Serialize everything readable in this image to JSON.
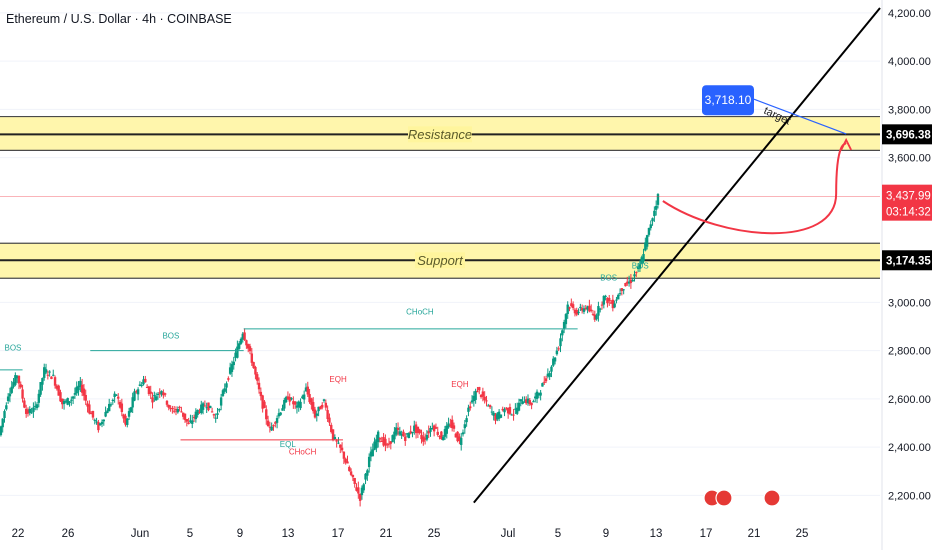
{
  "header": {
    "title": "Ethereum / U.S. Dollar · 4h · COINBASE"
  },
  "colors": {
    "up": "#089981",
    "down": "#f23645",
    "zone_fill": "#fff59d",
    "bos": "#26a69a",
    "choch": "#f23645",
    "trendline": "#000000",
    "target_box": "#2962ff",
    "projection": "#f23645"
  },
  "chart_data": {
    "type": "candlestick",
    "timeframe": "4h",
    "x_ticks": [
      "22",
      "26",
      "Jun",
      "5",
      "9",
      "13",
      "17",
      "21",
      "25",
      "Jul",
      "5",
      "9",
      "13",
      "17",
      "21",
      "25"
    ],
    "y_ticks": [
      "4,200.00",
      "4,000.00",
      "3,800.00",
      "3,600.00",
      "3,000.00",
      "2,800.00",
      "2,600.00",
      "2,400.00",
      "2,200.00"
    ],
    "ylim": [
      2160,
      4220
    ],
    "price_path": [
      [
        0,
        2450
      ],
      [
        0.02,
        2620
      ],
      [
        0.04,
        2700
      ],
      [
        0.06,
        2540
      ],
      [
        0.08,
        2560
      ],
      [
        0.1,
        2720
      ],
      [
        0.12,
        2690
      ],
      [
        0.14,
        2580
      ],
      [
        0.16,
        2600
      ],
      [
        0.18,
        2660
      ],
      [
        0.2,
        2550
      ],
      [
        0.22,
        2480
      ],
      [
        0.24,
        2560
      ],
      [
        0.26,
        2620
      ],
      [
        0.28,
        2490
      ],
      [
        0.3,
        2620
      ],
      [
        0.32,
        2680
      ],
      [
        0.34,
        2600
      ],
      [
        0.36,
        2640
      ],
      [
        0.38,
        2550
      ],
      [
        0.4,
        2560
      ],
      [
        0.42,
        2490
      ],
      [
        0.44,
        2550
      ],
      [
        0.46,
        2580
      ],
      [
        0.48,
        2520
      ],
      [
        0.5,
        2650
      ],
      [
        0.52,
        2760
      ],
      [
        0.54,
        2880
      ],
      [
        0.56,
        2760
      ],
      [
        0.58,
        2600
      ],
      [
        0.6,
        2470
      ],
      [
        0.62,
        2540
      ],
      [
        0.64,
        2610
      ],
      [
        0.66,
        2560
      ],
      [
        0.68,
        2640
      ],
      [
        0.7,
        2530
      ],
      [
        0.72,
        2590
      ],
      [
        0.74,
        2440
      ],
      [
        0.76,
        2380
      ],
      [
        0.78,
        2280
      ],
      [
        0.8,
        2190
      ],
      [
        0.82,
        2350
      ],
      [
        0.84,
        2450
      ],
      [
        0.86,
        2400
      ],
      [
        0.88,
        2470
      ],
      [
        0.9,
        2440
      ],
      [
        0.92,
        2480
      ],
      [
        0.94,
        2430
      ],
      [
        0.96,
        2490
      ],
      [
        0.98,
        2440
      ],
      [
        1.0,
        2500
      ],
      [
        1.02,
        2420
      ],
      [
        1.04,
        2560
      ],
      [
        1.06,
        2640
      ],
      [
        1.08,
        2580
      ],
      [
        1.1,
        2520
      ],
      [
        1.12,
        2560
      ],
      [
        1.14,
        2540
      ],
      [
        1.16,
        2600
      ],
      [
        1.18,
        2580
      ],
      [
        1.2,
        2640
      ],
      [
        1.22,
        2720
      ],
      [
        1.24,
        2820
      ],
      [
        1.26,
        2990
      ],
      [
        1.28,
        2960
      ],
      [
        1.3,
        2980
      ],
      [
        1.32,
        2940
      ],
      [
        1.34,
        3020
      ],
      [
        1.36,
        2990
      ],
      [
        1.38,
        3060
      ],
      [
        1.4,
        3090
      ],
      [
        1.42,
        3150
      ],
      [
        1.44,
        3300
      ],
      [
        1.46,
        3440
      ]
    ],
    "x_domain": [
      0,
      1.95
    ],
    "zones": [
      {
        "name": "Resistance",
        "top": 3770,
        "bottom": 3630,
        "line": 3696.38
      },
      {
        "name": "Support",
        "top": 3245,
        "bottom": 3100,
        "line": 3174.35
      }
    ],
    "price_labels": [
      {
        "value": "3,696.38",
        "price": 3696.38,
        "style": "dark"
      },
      {
        "value": "3,174.35",
        "price": 3174.35,
        "style": "dark"
      },
      {
        "value": "3,437.99",
        "price": 3437.99,
        "style": "red",
        "countdown": "03:14:32"
      }
    ],
    "target": {
      "label": "3,718.10",
      "price": 3718.1,
      "text": "target"
    },
    "trendline": [
      [
        1.05,
        2170
      ],
      [
        1.95,
        4220
      ]
    ],
    "structure_labels": [
      {
        "text": "BOS",
        "x": 0.01,
        "price": 2800,
        "kind": "bos"
      },
      {
        "text": "BOS",
        "x": 0.36,
        "price": 2850,
        "kind": "bos"
      },
      {
        "text": "CHoCH",
        "x": 0.9,
        "price": 2950,
        "kind": "bos"
      },
      {
        "text": "CHoCH",
        "x": 0.64,
        "price": 2370,
        "kind": "choch"
      },
      {
        "text": "BOS",
        "x": 1.33,
        "price": 3090,
        "kind": "bos"
      },
      {
        "text": "BOS",
        "x": 1.4,
        "price": 3140,
        "kind": "bos"
      },
      {
        "text": "EQL",
        "x": 0.62,
        "price": 2400,
        "kind": "bos"
      },
      {
        "text": "EQH",
        "x": 1.0,
        "price": 2650,
        "kind": "choch"
      },
      {
        "text": "EQH",
        "x": 0.73,
        "price": 2670,
        "kind": "choch"
      }
    ],
    "zone_labels": [
      {
        "text": "Resistance"
      },
      {
        "text": "Support"
      }
    ],
    "annotations": [
      {
        "text": "target"
      }
    ]
  }
}
